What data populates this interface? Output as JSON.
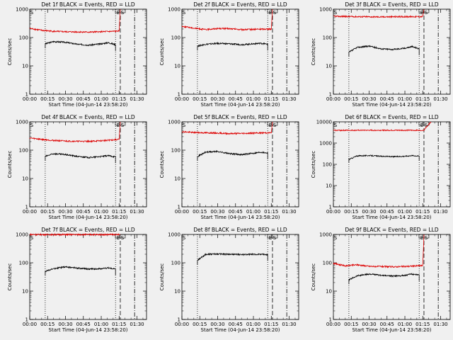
{
  "figure": {
    "background": "#f0f0f0",
    "events_color": "#000000",
    "lld_color": "#dd0000"
  },
  "chart_data": [
    {
      "type": "line",
      "title": "Det 1f BLACK = Events, RED = LLD",
      "xlabel": "Start Time (04-Jun-14 23:58:20)",
      "ylabel": "Counts/sec",
      "x_unit": "minutes after 00:00",
      "xlim": [
        0,
        98
      ],
      "ylim": [
        1,
        1000
      ],
      "yscale": "log",
      "xticks": [
        "00:00",
        "00:15",
        "00:30",
        "00:45",
        "01:00",
        "01:15",
        "01:30"
      ],
      "yticks": [
        "1",
        "10",
        "100",
        "1000"
      ],
      "markers": {
        "labels": [
          "S",
          "E",
          "S"
        ],
        "dotted": [
          13,
          72
        ],
        "dashed": [
          76
        ],
        "dashdot": [
          88
        ]
      },
      "series": [
        {
          "color": "#000000",
          "x": [
            13,
            20,
            30,
            40,
            50,
            60,
            66,
            72
          ],
          "y": [
            60,
            72,
            68,
            58,
            54,
            60,
            66,
            56
          ]
        },
        {
          "color": "#dd0000",
          "x": [
            0,
            10,
            20,
            30,
            40,
            50,
            60,
            70,
            75,
            76
          ],
          "y": [
            210,
            180,
            165,
            160,
            158,
            155,
            160,
            165,
            170,
            1000
          ]
        }
      ]
    },
    {
      "type": "line",
      "title": "Det 2f BLACK = Events, RED = LLD",
      "xlabel": "Start Time (04-Jun-14 23:58:20)",
      "ylabel": "Counts/sec",
      "x_unit": "minutes after 00:00",
      "xlim": [
        0,
        98
      ],
      "ylim": [
        1,
        1000
      ],
      "yscale": "log",
      "xticks": [
        "00:00",
        "00:15",
        "00:30",
        "00:45",
        "01:00",
        "01:15",
        "01:30"
      ],
      "yticks": [
        "1",
        "10",
        "100",
        "1000"
      ],
      "markers": {
        "labels": [
          "S",
          "E",
          "S"
        ],
        "dotted": [
          13,
          72
        ],
        "dashed": [
          76
        ],
        "dashdot": [
          88
        ]
      },
      "series": [
        {
          "color": "#000000",
          "x": [
            13,
            20,
            30,
            40,
            50,
            60,
            66,
            72
          ],
          "y": [
            50,
            58,
            62,
            60,
            56,
            60,
            63,
            58
          ]
        },
        {
          "color": "#dd0000",
          "x": [
            0,
            10,
            20,
            30,
            40,
            50,
            60,
            70,
            75,
            76
          ],
          "y": [
            250,
            215,
            190,
            210,
            205,
            190,
            195,
            200,
            200,
            1000
          ]
        }
      ]
    },
    {
      "type": "line",
      "title": "Det 3f BLACK = Events, RED = LLD",
      "xlabel": "Start Time (04-Jun-14 23:58:20)",
      "ylabel": "Counts/sec",
      "x_unit": "minutes after 00:00",
      "xlim": [
        0,
        98
      ],
      "ylim": [
        1,
        1000
      ],
      "yscale": "log",
      "xticks": [
        "00:00",
        "00:15",
        "00:30",
        "00:45",
        "01:00",
        "01:15",
        "01:30"
      ],
      "yticks": [
        "1",
        "10",
        "100",
        "1000"
      ],
      "markers": {
        "labels": [
          "S",
          "E",
          "S"
        ],
        "dotted": [
          13,
          72
        ],
        "dashed": [
          76
        ],
        "dashdot": [
          88
        ]
      },
      "series": [
        {
          "color": "#000000",
          "x": [
            13,
            20,
            30,
            40,
            50,
            60,
            66,
            72
          ],
          "y": [
            30,
            45,
            50,
            40,
            38,
            42,
            48,
            40
          ]
        },
        {
          "color": "#dd0000",
          "x": [
            0,
            10,
            20,
            30,
            40,
            50,
            60,
            70,
            75,
            76
          ],
          "y": [
            560,
            555,
            545,
            540,
            535,
            540,
            545,
            545,
            550,
            1000
          ]
        }
      ]
    },
    {
      "type": "line",
      "title": "Det 4f BLACK = Events, RED = LLD",
      "xlabel": "Start Time (04-Jun-14 23:58:20)",
      "ylabel": "Counts/sec",
      "x_unit": "minutes after 00:00",
      "xlim": [
        0,
        98
      ],
      "ylim": [
        1,
        1000
      ],
      "yscale": "log",
      "xticks": [
        "00:00",
        "00:15",
        "00:30",
        "00:45",
        "01:00",
        "01:15",
        "01:30"
      ],
      "yticks": [
        "1",
        "10",
        "100",
        "1000"
      ],
      "markers": {
        "labels": [
          "S",
          "E",
          "S"
        ],
        "dotted": [
          13,
          72
        ],
        "dashed": [
          76
        ],
        "dashdot": [
          88
        ]
      },
      "series": [
        {
          "color": "#000000",
          "x": [
            13,
            20,
            30,
            40,
            50,
            60,
            66,
            72
          ],
          "y": [
            60,
            75,
            70,
            60,
            55,
            60,
            64,
            58
          ]
        },
        {
          "color": "#dd0000",
          "x": [
            0,
            10,
            20,
            30,
            40,
            50,
            60,
            70,
            75,
            76
          ],
          "y": [
            270,
            240,
            220,
            210,
            205,
            205,
            215,
            230,
            240,
            1000
          ]
        }
      ]
    },
    {
      "type": "line",
      "title": "Det 5f BLACK = Events, RED = LLD",
      "xlabel": "Start Time (04-Jun-14 23:58:20)",
      "ylabel": "Counts/sec",
      "x_unit": "minutes after 00:00",
      "xlim": [
        0,
        98
      ],
      "ylim": [
        1,
        1000
      ],
      "yscale": "log",
      "xticks": [
        "00:00",
        "00:15",
        "00:30",
        "00:45",
        "01:00",
        "01:15",
        "01:30"
      ],
      "yticks": [
        "1",
        "10",
        "100",
        "1000"
      ],
      "markers": {
        "labels": [
          "S",
          "E",
          "S"
        ],
        "dotted": [
          13,
          72
        ],
        "dashed": [
          76
        ],
        "dashdot": [
          88
        ]
      },
      "series": [
        {
          "color": "#000000",
          "x": [
            13,
            20,
            30,
            40,
            50,
            60,
            66,
            72
          ],
          "y": [
            60,
            85,
            90,
            75,
            70,
            78,
            85,
            80
          ]
        },
        {
          "color": "#dd0000",
          "x": [
            0,
            10,
            20,
            30,
            40,
            50,
            60,
            70,
            75,
            76
          ],
          "y": [
            450,
            420,
            410,
            400,
            385,
            390,
            400,
            410,
            410,
            1000
          ]
        }
      ]
    },
    {
      "type": "line",
      "title": "Det 6f BLACK = Events, RED = LLD",
      "xlabel": "Start Time (04-Jun-14 23:58:20)",
      "ylabel": "Counts/sec",
      "x_unit": "minutes after 00:00",
      "xlim": [
        0,
        98
      ],
      "ylim": [
        1,
        10000
      ],
      "yscale": "log",
      "xticks": [
        "00:00",
        "00:15",
        "00:30",
        "00:45",
        "01:00",
        "01:15",
        "01:30"
      ],
      "yticks": [
        "1",
        "10",
        "100",
        "1000",
        "10000"
      ],
      "markers": {
        "labels": [
          "S",
          "E",
          "S"
        ],
        "dotted": [
          13,
          72
        ],
        "dashed": [
          76
        ],
        "dashdot": [
          88
        ]
      },
      "series": [
        {
          "color": "#000000",
          "x": [
            13,
            20,
            30,
            40,
            50,
            60,
            66,
            72
          ],
          "y": [
            170,
            250,
            260,
            240,
            230,
            240,
            260,
            245
          ]
        },
        {
          "color": "#dd0000",
          "x": [
            0,
            10,
            20,
            30,
            40,
            50,
            60,
            70,
            75,
            76,
            79,
            82
          ],
          "y": [
            4000,
            4000,
            4000,
            4000,
            4000,
            4000,
            4000,
            4000,
            4000,
            4100,
            6500,
            10000
          ]
        }
      ]
    },
    {
      "type": "line",
      "title": "Det 7f BLACK = Events, RED = LLD",
      "xlabel": "Start Time (04-Jun-14 23:58:20)",
      "ylabel": "Counts/sec",
      "x_unit": "minutes after 00:00",
      "xlim": [
        0,
        98
      ],
      "ylim": [
        1,
        1000
      ],
      "yscale": "log",
      "xticks": [
        "00:00",
        "00:15",
        "00:30",
        "00:45",
        "01:00",
        "01:15",
        "01:30"
      ],
      "yticks": [
        "1",
        "10",
        "100",
        "1000"
      ],
      "markers": {
        "labels": [
          "S",
          "E",
          "S"
        ],
        "dotted": [
          13,
          72
        ],
        "dashed": [
          76
        ],
        "dashdot": [
          88
        ]
      },
      "series": [
        {
          "color": "#000000",
          "x": [
            13,
            20,
            30,
            40,
            50,
            60,
            66,
            72
          ],
          "y": [
            50,
            62,
            72,
            65,
            60,
            62,
            66,
            60
          ]
        },
        {
          "color": "#dd0000",
          "x": [
            0,
            10,
            20,
            30,
            40,
            50,
            60,
            70,
            75,
            76
          ],
          "y": [
            1000,
            990,
            990,
            990,
            990,
            990,
            990,
            990,
            990,
            1000
          ]
        }
      ]
    },
    {
      "type": "line",
      "title": "Det 8f BLACK = Events, RED = LLD",
      "xlabel": "Start Time (04-Jun-14 23:58:20)",
      "ylabel": "Counts/sec",
      "x_unit": "minutes after 00:00",
      "xlim": [
        0,
        98
      ],
      "ylim": [
        1,
        1000
      ],
      "yscale": "log",
      "xticks": [
        "00:00",
        "00:15",
        "00:30",
        "00:45",
        "01:00",
        "01:15",
        "01:30"
      ],
      "yticks": [
        "1",
        "10",
        "100",
        "1000"
      ],
      "markers": {
        "labels": [
          "S",
          "E",
          "S"
        ],
        "dotted": [
          13,
          72
        ],
        "dashed": [
          76
        ],
        "dashdot": [
          88
        ]
      },
      "series": [
        {
          "color": "#000000",
          "x": [
            13,
            20,
            30,
            40,
            50,
            60,
            66,
            72
          ],
          "y": [
            120,
            200,
            205,
            200,
            195,
            198,
            200,
            195
          ]
        }
      ]
    },
    {
      "type": "line",
      "title": "Det 9f BLACK = Events, RED = LLD",
      "xlabel": "Start Time (04-Jun-14 23:58:20)",
      "ylabel": "Counts/sec",
      "x_unit": "minutes after 00:00",
      "xlim": [
        0,
        98
      ],
      "ylim": [
        1,
        1000
      ],
      "yscale": "log",
      "xticks": [
        "00:00",
        "00:15",
        "00:30",
        "00:45",
        "01:00",
        "01:15",
        "01:30"
      ],
      "yticks": [
        "1",
        "10",
        "100",
        "1000"
      ],
      "markers": {
        "labels": [
          "S",
          "E",
          "S"
        ],
        "dotted": [
          13,
          72
        ],
        "dashed": [
          76
        ],
        "dashdot": [
          88
        ]
      },
      "series": [
        {
          "color": "#000000",
          "x": [
            13,
            20,
            30,
            40,
            50,
            60,
            66,
            72
          ],
          "y": [
            25,
            35,
            40,
            36,
            34,
            36,
            40,
            38
          ]
        },
        {
          "color": "#dd0000",
          "x": [
            0,
            10,
            20,
            30,
            40,
            50,
            60,
            70,
            75,
            76
          ],
          "y": [
            95,
            78,
            85,
            75,
            74,
            72,
            74,
            78,
            80,
            1000
          ]
        }
      ]
    }
  ]
}
